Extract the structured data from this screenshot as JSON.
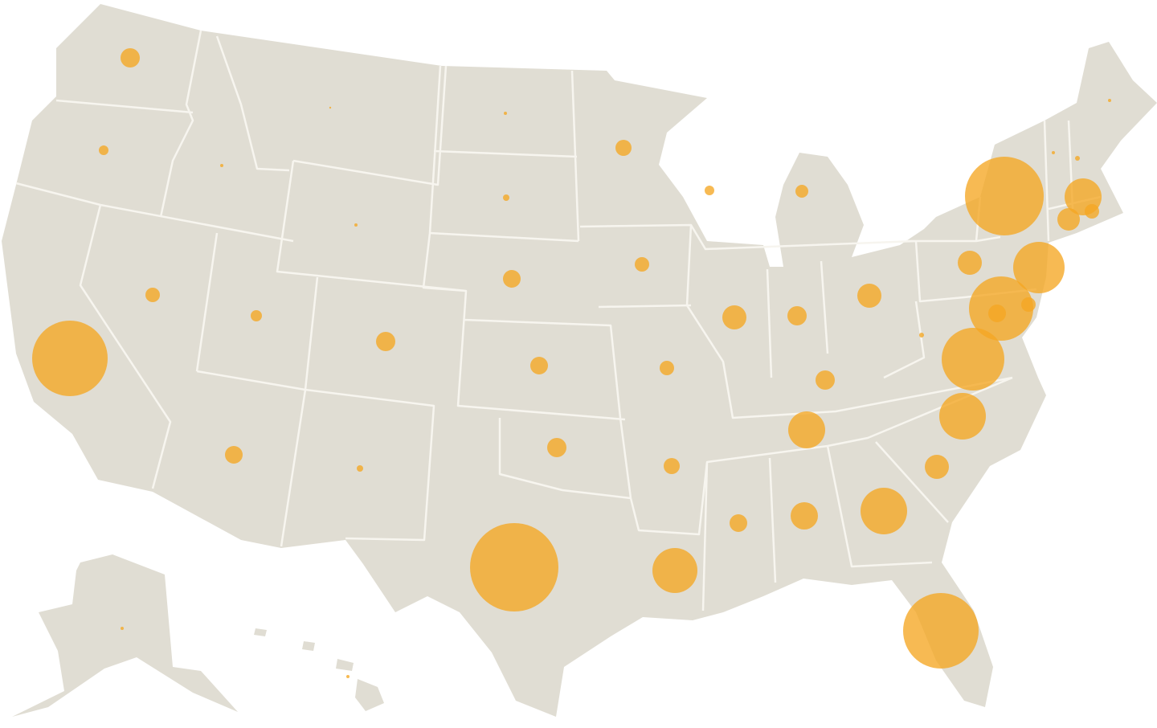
{
  "map": {
    "type": "proportional-symbol",
    "colors": {
      "land": "#e0ddd3",
      "borders": "#f7f5ef",
      "symbol": "#f5a623",
      "symbol_opacity": 0.78,
      "background": "#ffffff"
    },
    "symbols": [
      {
        "state": "WA",
        "relative_value": 144
      },
      {
        "state": "OR",
        "relative_value": 36
      },
      {
        "state": "ID",
        "relative_value": 4
      },
      {
        "state": "MT",
        "relative_value": 1
      },
      {
        "state": "ND",
        "relative_value": 4
      },
      {
        "state": "SD",
        "relative_value": 16
      },
      {
        "state": "WY",
        "relative_value": 4
      },
      {
        "state": "NE",
        "relative_value": 121
      },
      {
        "state": "CA",
        "relative_value": 2209
      },
      {
        "state": "NV",
        "relative_value": 81
      },
      {
        "state": "UT",
        "relative_value": 49
      },
      {
        "state": "CO",
        "relative_value": 144
      },
      {
        "state": "KS",
        "relative_value": 121
      },
      {
        "state": "AZ",
        "relative_value": 121
      },
      {
        "state": "NM",
        "relative_value": 16
      },
      {
        "state": "OK",
        "relative_value": 144
      },
      {
        "state": "TX",
        "relative_value": 3025
      },
      {
        "state": "MN",
        "relative_value": 100
      },
      {
        "state": "IA",
        "relative_value": 81
      },
      {
        "state": "MO",
        "relative_value": 81
      },
      {
        "state": "AR",
        "relative_value": 100
      },
      {
        "state": "LA",
        "relative_value": 784
      },
      {
        "state": "WI",
        "relative_value": 36
      },
      {
        "state": "IL",
        "relative_value": 225
      },
      {
        "state": "MI",
        "relative_value": 64
      },
      {
        "state": "IN",
        "relative_value": 144
      },
      {
        "state": "OH",
        "relative_value": 225
      },
      {
        "state": "KY",
        "relative_value": 144
      },
      {
        "state": "TN",
        "relative_value": 529
      },
      {
        "state": "MS",
        "relative_value": 121
      },
      {
        "state": "AL",
        "relative_value": 289
      },
      {
        "state": "GA",
        "relative_value": 841
      },
      {
        "state": "FL",
        "relative_value": 2209
      },
      {
        "state": "SC",
        "relative_value": 225
      },
      {
        "state": "NC",
        "relative_value": 841
      },
      {
        "state": "VA",
        "relative_value": 1521
      },
      {
        "state": "WV",
        "relative_value": 9
      },
      {
        "state": "MD",
        "relative_value": 1600
      },
      {
        "state": "DC",
        "relative_value": 121
      },
      {
        "state": "DE",
        "relative_value": 81
      },
      {
        "state": "NJ",
        "relative_value": 1024
      },
      {
        "state": "PA",
        "relative_value": 225
      },
      {
        "state": "NY",
        "relative_value": 2401
      },
      {
        "state": "CT",
        "relative_value": 196
      },
      {
        "state": "MA",
        "relative_value": 529
      },
      {
        "state": "RI",
        "relative_value": 81
      },
      {
        "state": "VT",
        "relative_value": 4
      },
      {
        "state": "NH",
        "relative_value": 9
      },
      {
        "state": "ME",
        "relative_value": 4
      },
      {
        "state": "AK",
        "relative_value": 4
      },
      {
        "state": "HI",
        "relative_value": 4
      }
    ]
  }
}
